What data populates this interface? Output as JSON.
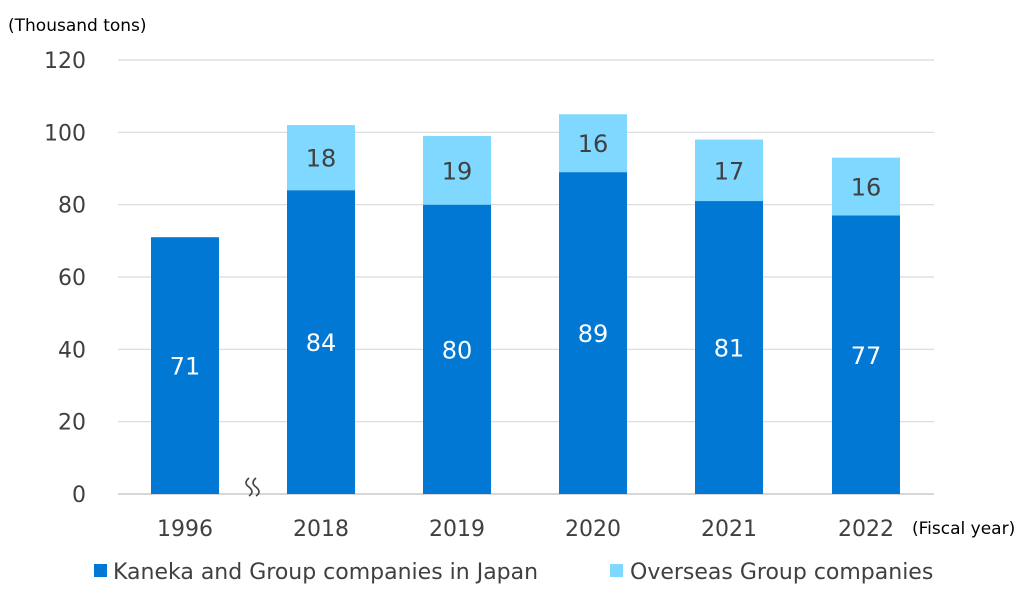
{
  "chart_data": {
    "type": "bar",
    "stacked": true,
    "categories": [
      "1996",
      "2018",
      "2019",
      "2020",
      "2021",
      "2022"
    ],
    "series": [
      {
        "name": "Kaneka and Group companies in Japan",
        "color": "#0078D4",
        "values": [
          71,
          84,
          80,
          89,
          81,
          77
        ],
        "labels": [
          "71",
          "84",
          "80",
          "89",
          "81",
          "77"
        ]
      },
      {
        "name": "Overseas Group companies",
        "color": "#7FD8FF",
        "values": [
          null,
          18,
          19,
          16,
          17,
          16
        ],
        "labels": [
          "",
          "18",
          "19",
          "16",
          "17",
          "16"
        ]
      }
    ],
    "ylabel": "(Thousand tons)",
    "xlabel": "(Fiscal year)",
    "ylim": [
      0,
      120
    ],
    "yticks": [
      "0",
      "20",
      "40",
      "60",
      "80",
      "100",
      "120"
    ],
    "grid": true,
    "legend": "bottom",
    "axis_break": "between 1996 and 2018"
  }
}
